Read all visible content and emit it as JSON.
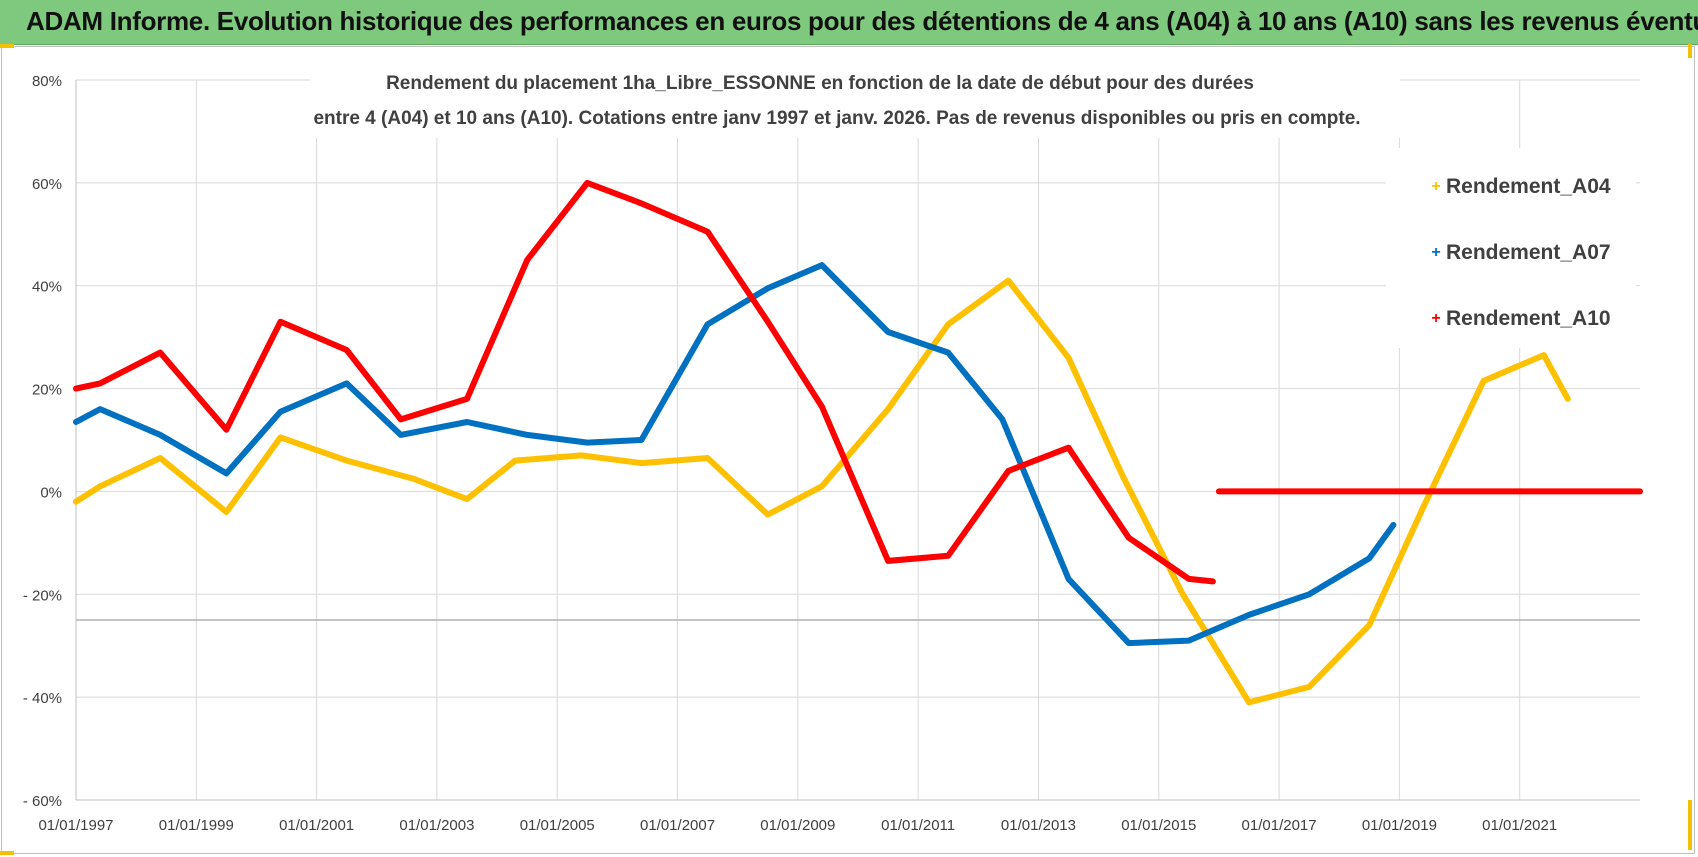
{
  "header": {
    "title": "ADAM Informe. Evolution historique des performances en euros pour des détentions de 4 ans (A04) à 10 ans (A10) sans les revenus éventuels"
  },
  "colors": {
    "header_bg": "#7fc97f",
    "A04": "#ffc000",
    "A07": "#0070c0",
    "A10": "#ff0000",
    "grid": "#d9d9d9"
  },
  "chart_data": {
    "type": "line",
    "title_line1": "Rendement du placement 1ha_Libre_ESSONNE en fonction de la date de début pour des durées",
    "title_line2": "entre 4 (A04) et 10 ans (A10).  Cotations entre janv 1997 et janv. 2026. Pas de revenus disponibles ou pris en compte.",
    "xlabel": "",
    "ylabel": "",
    "x_range": [
      1997.0,
      2023.0
    ],
    "ylim": [
      -60,
      80
    ],
    "y_ticks": [
      80,
      60,
      40,
      20,
      0,
      -20,
      -40,
      -60
    ],
    "y_tick_labels": [
      "80%",
      "60%",
      "40%",
      "20%",
      "0%",
      "- 20%",
      "- 40%",
      "- 60%"
    ],
    "x_ticks": [
      1997,
      1999,
      2001,
      2003,
      2005,
      2007,
      2009,
      2011,
      2013,
      2015,
      2017,
      2019,
      2021
    ],
    "x_tick_labels": [
      "01/01/1997",
      "01/01/1999",
      "01/01/2001",
      "01/01/2003",
      "01/01/2005",
      "01/01/2007",
      "01/01/2009",
      "01/01/2011",
      "01/01/2013",
      "01/01/2015",
      "01/01/2017",
      "01/01/2019",
      "01/01/2021"
    ],
    "reference_line": -25,
    "legend_position": "right",
    "series": [
      {
        "name": "Rendement_A04",
        "color": "#ffc000",
        "points": [
          [
            1997.0,
            -2
          ],
          [
            1997.4,
            1
          ],
          [
            1998.4,
            6.5
          ],
          [
            1999.5,
            -4
          ],
          [
            2000.4,
            10.5
          ],
          [
            2001.5,
            6
          ],
          [
            2002.6,
            2.5
          ],
          [
            2003.5,
            -1.5
          ],
          [
            2004.3,
            6
          ],
          [
            2005.4,
            7
          ],
          [
            2006.4,
            5.5
          ],
          [
            2007.5,
            6.5
          ],
          [
            2008.5,
            -4.5
          ],
          [
            2009.4,
            1
          ],
          [
            2010.5,
            16
          ],
          [
            2011.5,
            32.5
          ],
          [
            2012.5,
            41
          ],
          [
            2013.5,
            26
          ],
          [
            2014.4,
            3
          ],
          [
            2015.4,
            -20
          ],
          [
            2016.5,
            -41
          ],
          [
            2017.5,
            -38
          ],
          [
            2018.5,
            -26
          ],
          [
            2019.4,
            -3
          ],
          [
            2020.4,
            21.5
          ],
          [
            2021.4,
            26.5
          ],
          [
            2021.8,
            18
          ]
        ]
      },
      {
        "name": "Rendement_A07",
        "color": "#0070c0",
        "points": [
          [
            1997.0,
            13.5
          ],
          [
            1997.4,
            16
          ],
          [
            1998.4,
            11
          ],
          [
            1999.5,
            3.5
          ],
          [
            2000.4,
            15.5
          ],
          [
            2001.5,
            21
          ],
          [
            2002.4,
            11
          ],
          [
            2003.5,
            13.5
          ],
          [
            2004.5,
            11
          ],
          [
            2005.5,
            9.5
          ],
          [
            2006.4,
            10
          ],
          [
            2007.5,
            32.5
          ],
          [
            2008.5,
            39.5
          ],
          [
            2009.4,
            44
          ],
          [
            2010.5,
            31
          ],
          [
            2011.5,
            27
          ],
          [
            2012.4,
            14
          ],
          [
            2013.5,
            -17
          ],
          [
            2014.5,
            -29.5
          ],
          [
            2015.5,
            -29
          ],
          [
            2016.5,
            -24
          ],
          [
            2017.5,
            -20
          ],
          [
            2018.5,
            -13
          ],
          [
            2018.9,
            -6.5
          ]
        ]
      },
      {
        "name": "Rendement_A10",
        "color": "#ff0000",
        "points": [
          [
            1997.0,
            20
          ],
          [
            1997.4,
            21
          ],
          [
            1998.4,
            27
          ],
          [
            1999.5,
            12
          ],
          [
            2000.4,
            33
          ],
          [
            2001.5,
            27.5
          ],
          [
            2002.4,
            14
          ],
          [
            2003.5,
            18
          ],
          [
            2004.5,
            45
          ],
          [
            2005.5,
            60
          ],
          [
            2006.4,
            56
          ],
          [
            2007.5,
            50.5
          ],
          [
            2008.5,
            33
          ],
          [
            2009.4,
            16.5
          ],
          [
            2010.5,
            -13.5
          ],
          [
            2011.5,
            -12.5
          ],
          [
            2012.5,
            4
          ],
          [
            2013.5,
            8.5
          ],
          [
            2014.5,
            -9
          ],
          [
            2015.5,
            -17
          ],
          [
            2015.9,
            -17.5
          ]
        ],
        "extra_segment": [
          [
            2016.0,
            0
          ],
          [
            2023.0,
            0
          ]
        ]
      }
    ]
  }
}
